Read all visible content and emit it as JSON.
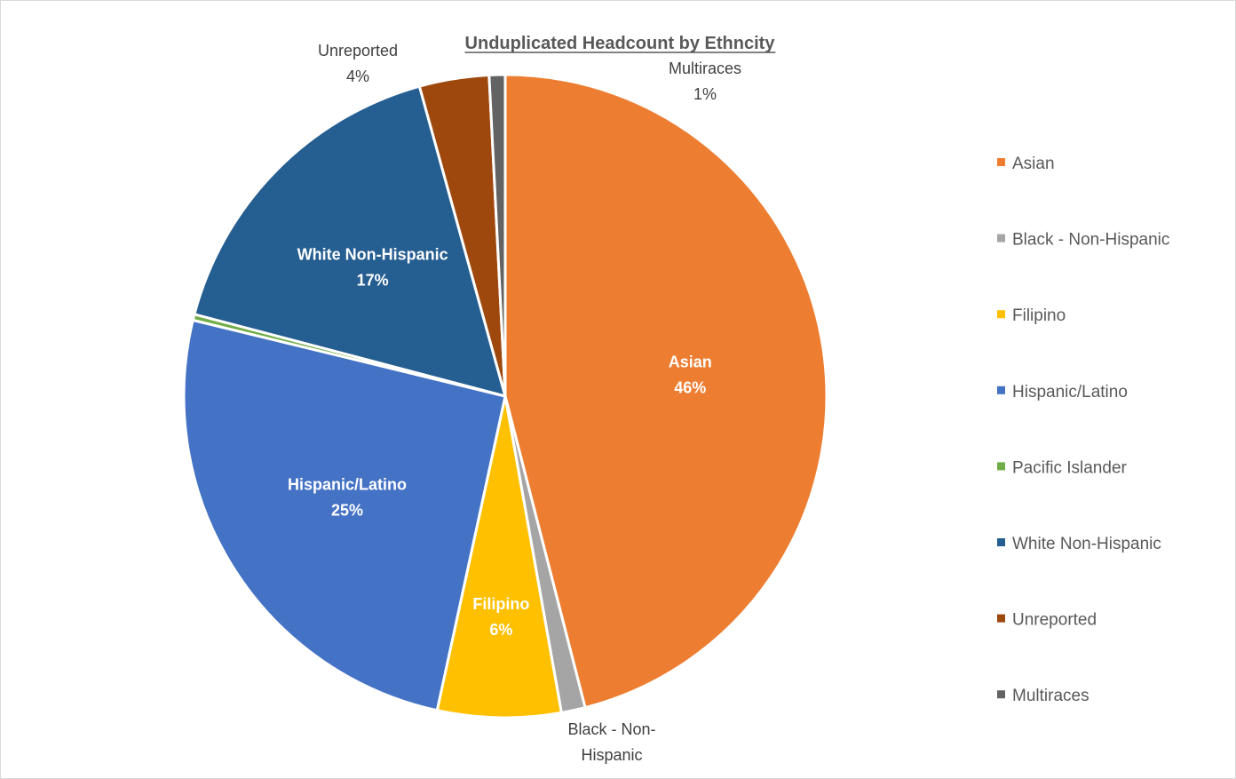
{
  "chart_data": {
    "type": "pie",
    "title": "Unduplicated Headcount by Ethncity",
    "legend_position": "right",
    "slices": [
      {
        "label": "Asian",
        "value": 46,
        "percent_label": "46%",
        "color": "#ED7D31",
        "label_mode": "inside",
        "data_label": [
          "Asian",
          "46%"
        ]
      },
      {
        "label": "Black - Non-Hispanic",
        "value": 1.2,
        "percent_label": "1%",
        "color": "#A5A5A5",
        "label_mode": "outside",
        "data_label": [
          "Black - Non-",
          "Hispanic"
        ]
      },
      {
        "label": "Filipino",
        "value": 6.2,
        "percent_label": "6%",
        "color": "#FFC000",
        "label_mode": "inside",
        "data_label": [
          "Filipino",
          "6%"
        ]
      },
      {
        "label": "Hispanic/Latino",
        "value": 25.4,
        "percent_label": "25%",
        "color": "#4472C4",
        "label_mode": "inside",
        "data_label": [
          "Hispanic/Latino",
          "25%"
        ]
      },
      {
        "label": "Pacific Islander",
        "value": 0.3,
        "percent_label": "0%",
        "color": "#70AD47",
        "label_mode": "none",
        "data_label": []
      },
      {
        "label": "White Non-Hispanic",
        "value": 16.6,
        "percent_label": "17%",
        "color": "#255E91",
        "label_mode": "inside",
        "data_label": [
          "White Non-Hispanic",
          "17%"
        ]
      },
      {
        "label": "Unreported",
        "value": 3.5,
        "percent_label": "4%",
        "color": "#9E480E",
        "label_mode": "outside",
        "data_label": [
          "Unreported",
          "4%"
        ]
      },
      {
        "label": "Multiraces",
        "value": 0.8,
        "percent_label": "1%",
        "color": "#636363",
        "label_mode": "outside",
        "data_label": [
          "Multiraces",
          "1%"
        ]
      }
    ]
  }
}
